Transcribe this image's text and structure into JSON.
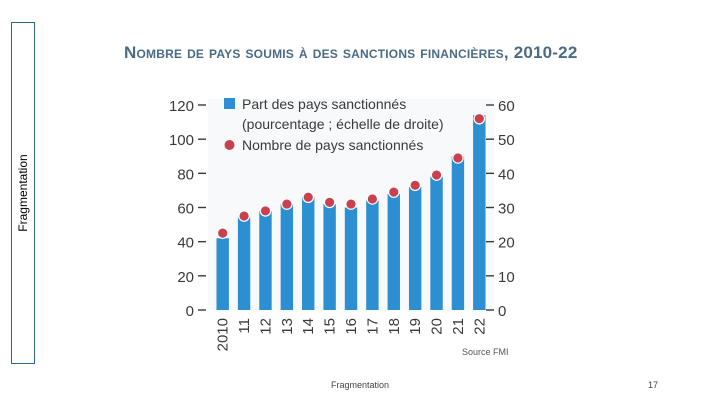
{
  "sidebar": {
    "label": "Fragmentation"
  },
  "footer": {
    "text": "Fragmentation",
    "page_number": "17"
  },
  "chart_data": {
    "type": "bar",
    "title": "Nombre de pays soumis à des sanctions financières, 2010-22",
    "categories": [
      "2010",
      "11",
      "12",
      "13",
      "14",
      "15",
      "16",
      "17",
      "18",
      "19",
      "20",
      "21",
      "22"
    ],
    "series": [
      {
        "name": "Part des pays sanctionnés (pourcentage ; échelle de droite)",
        "type": "bar",
        "axis": "right",
        "values": [
          21,
          27,
          29,
          31,
          33,
          31,
          30,
          32,
          34,
          36,
          39,
          45,
          57
        ]
      },
      {
        "name": "Nombre de pays sanctionnés",
        "type": "scatter",
        "axis": "left",
        "values": [
          45,
          55,
          58,
          62,
          66,
          63,
          62,
          65,
          69,
          73,
          79,
          89,
          112
        ]
      }
    ],
    "left_axis": {
      "ticks": [
        0,
        20,
        40,
        60,
        80,
        100,
        120
      ],
      "ylim": [
        0,
        120
      ]
    },
    "right_axis": {
      "ticks": [
        0,
        10,
        20,
        30,
        40,
        50,
        60
      ],
      "ylim": [
        0,
        60
      ]
    },
    "source": "Source FMI",
    "legend_position": "top-left",
    "colors": {
      "bar": "#2b8fd1",
      "dot": "#c8414f",
      "title": "#4a6b86"
    }
  }
}
